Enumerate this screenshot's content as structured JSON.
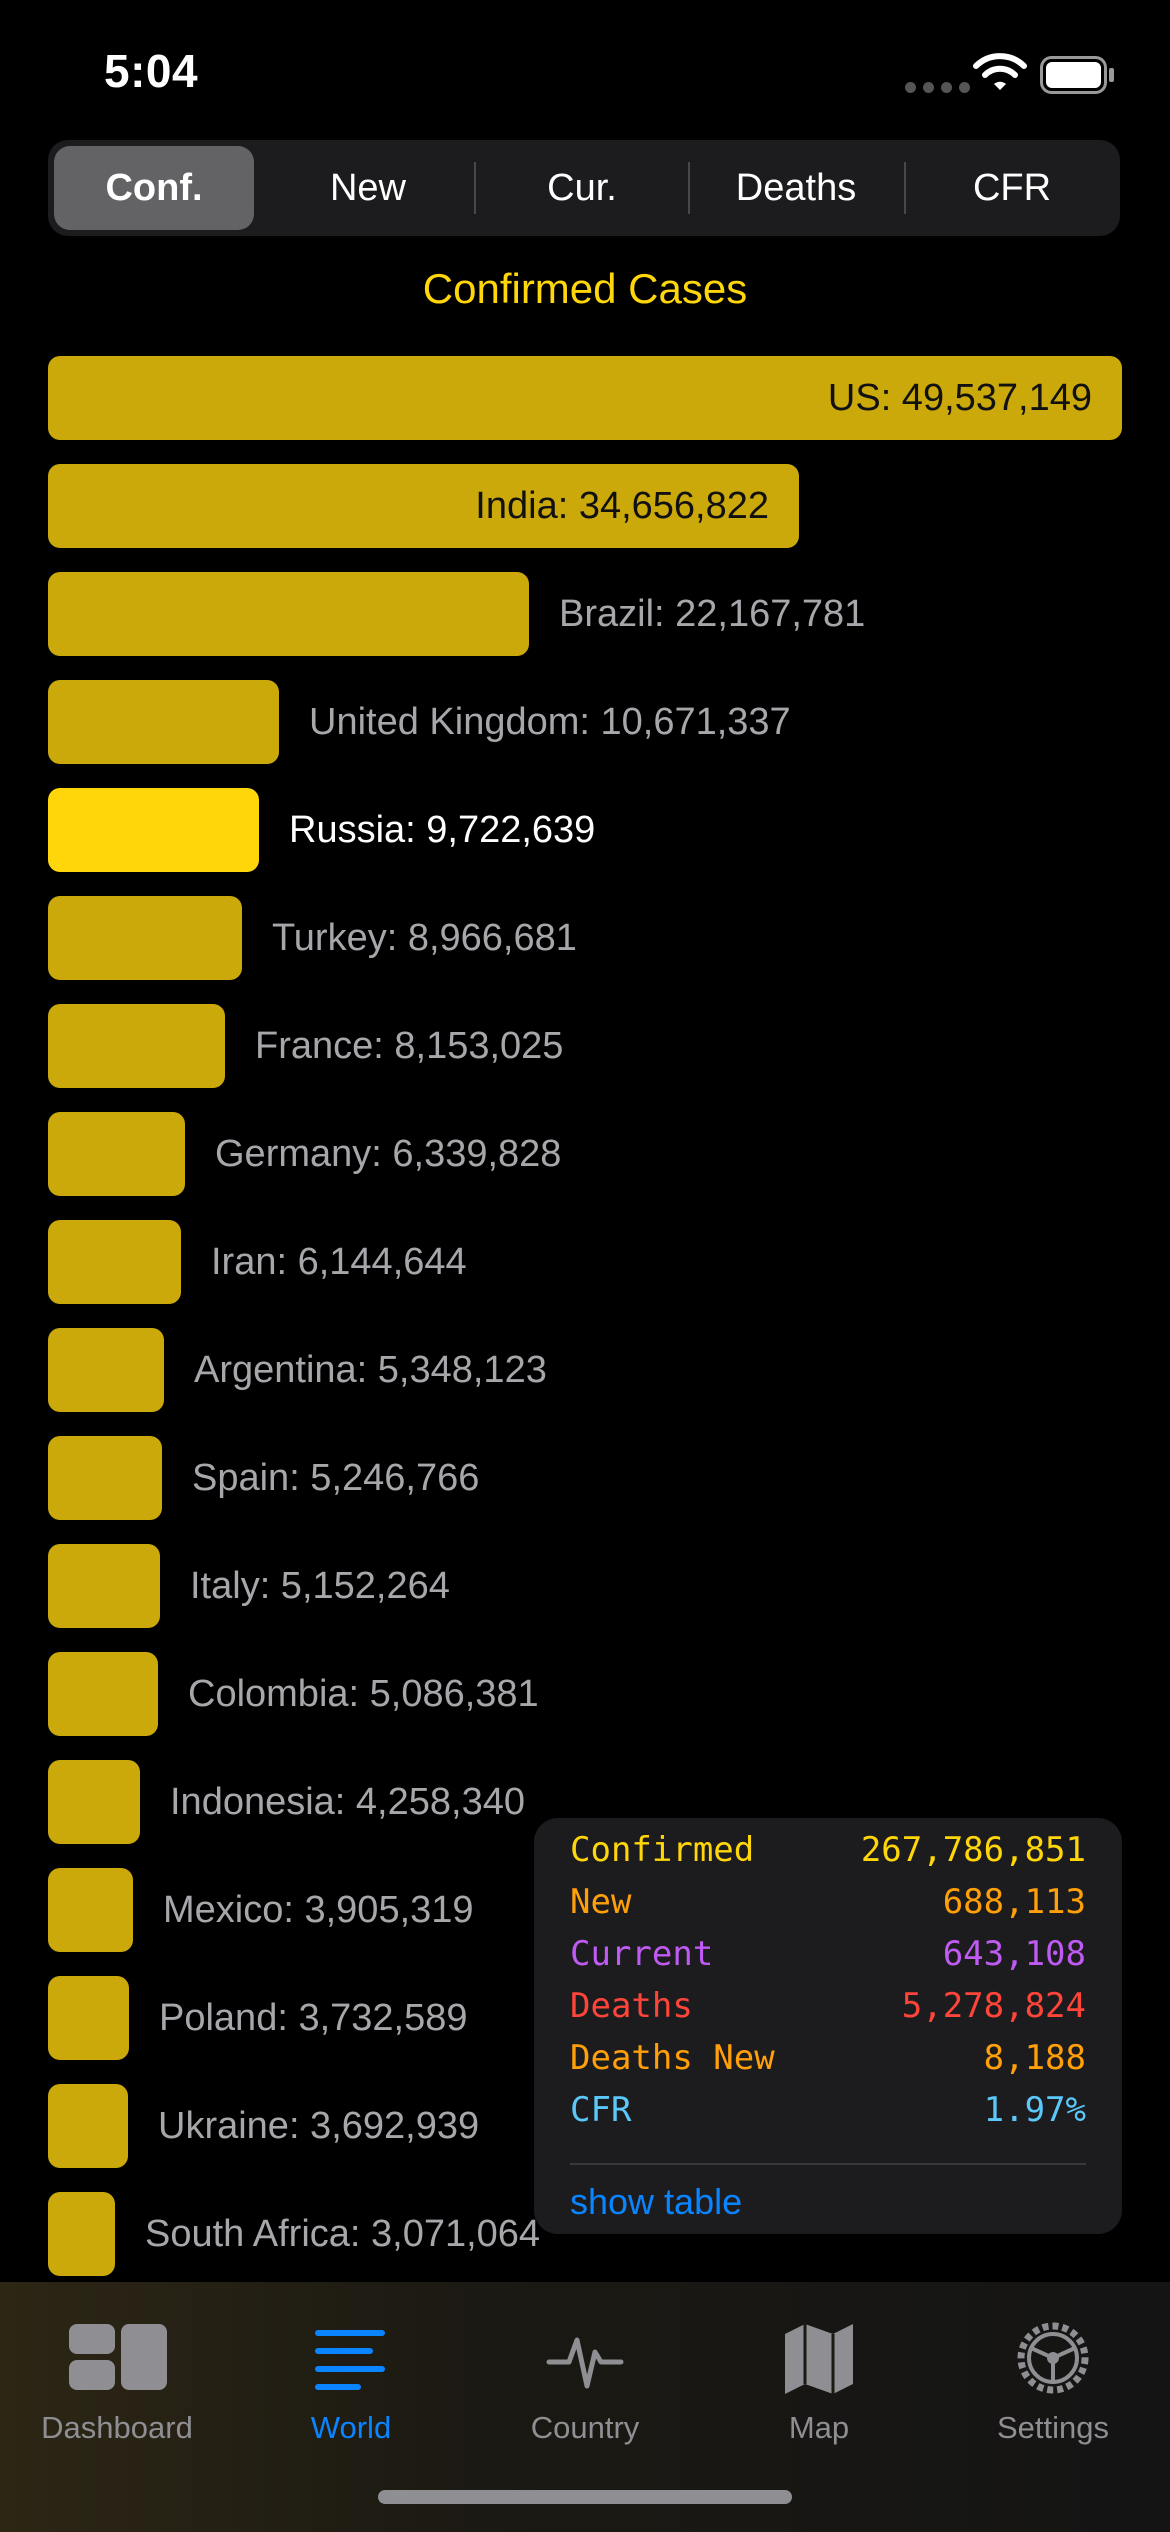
{
  "status_bar": {
    "time": "5:04",
    "icons": [
      "signal-dots-icon",
      "wifi-icon",
      "battery-icon"
    ]
  },
  "segments": [
    {
      "label": "Conf.",
      "selected": true
    },
    {
      "label": "New",
      "selected": false
    },
    {
      "label": "Cur.",
      "selected": false
    },
    {
      "label": "Deaths",
      "selected": false
    },
    {
      "label": "CFR",
      "selected": false
    }
  ],
  "chart_data": {
    "type": "bar",
    "orientation": "horizontal",
    "title": "Confirmed Cases",
    "highlighted": "Russia",
    "colors": {
      "bar": "#cca90b",
      "highlight": "#ffd60a",
      "label": "#a7a7ab"
    },
    "categories": [
      "US",
      "India",
      "Brazil",
      "United Kingdom",
      "Russia",
      "Turkey",
      "France",
      "Germany",
      "Iran",
      "Argentina",
      "Spain",
      "Italy",
      "Colombia",
      "Indonesia",
      "Mexico",
      "Poland",
      "Ukraine",
      "South Africa"
    ],
    "values": [
      49537149,
      34656822,
      22167781,
      10671337,
      9722639,
      8966681,
      8153025,
      6339828,
      6144644,
      5348123,
      5246766,
      5152264,
      5086381,
      4258340,
      3905319,
      3732589,
      3692939,
      3071064
    ],
    "labels": [
      "US: 49,537,149",
      "India: 34,656,822",
      "Brazil: 22,167,781",
      "United Kingdom: 10,671,337",
      "Russia: 9,722,639",
      "Turkey: 8,966,681",
      "France: 8,153,025",
      "Germany: 6,339,828",
      "Iran: 6,144,644",
      "Argentina: 5,348,123",
      "Spain: 5,246,766",
      "Italy: 5,152,264",
      "Colombia: 5,086,381",
      "Indonesia: 4,258,340",
      "Mexico: 3,905,319",
      "Poland: 3,732,589",
      "Ukraine: 3,692,939",
      "South Africa: 3,071,064"
    ]
  },
  "summary": {
    "rows": [
      {
        "label": "Confirmed",
        "value": "267,786,851",
        "color": "#ffd60a"
      },
      {
        "label": "New",
        "value": "688,113",
        "color": "#ff9f0a"
      },
      {
        "label": "Current",
        "value": "643,108",
        "color": "#bf5af2"
      },
      {
        "label": "Deaths",
        "value": "5,278,824",
        "color": "#ff453a"
      },
      {
        "label": "Deaths New",
        "value": "8,188",
        "color": "#ff9f0a"
      },
      {
        "label": "CFR",
        "value": "1.97%",
        "color": "#5ac8fa"
      }
    ],
    "link": "show table"
  },
  "tab_bar": {
    "tabs": [
      {
        "label": "Dashboard",
        "icon": "dashboard-icon",
        "active": false
      },
      {
        "label": "World",
        "icon": "world-list-icon",
        "active": true
      },
      {
        "label": "Country",
        "icon": "pulse-icon",
        "active": false
      },
      {
        "label": "Map",
        "icon": "map-icon",
        "active": false
      },
      {
        "label": "Settings",
        "icon": "gear-icon",
        "active": false
      }
    ]
  }
}
